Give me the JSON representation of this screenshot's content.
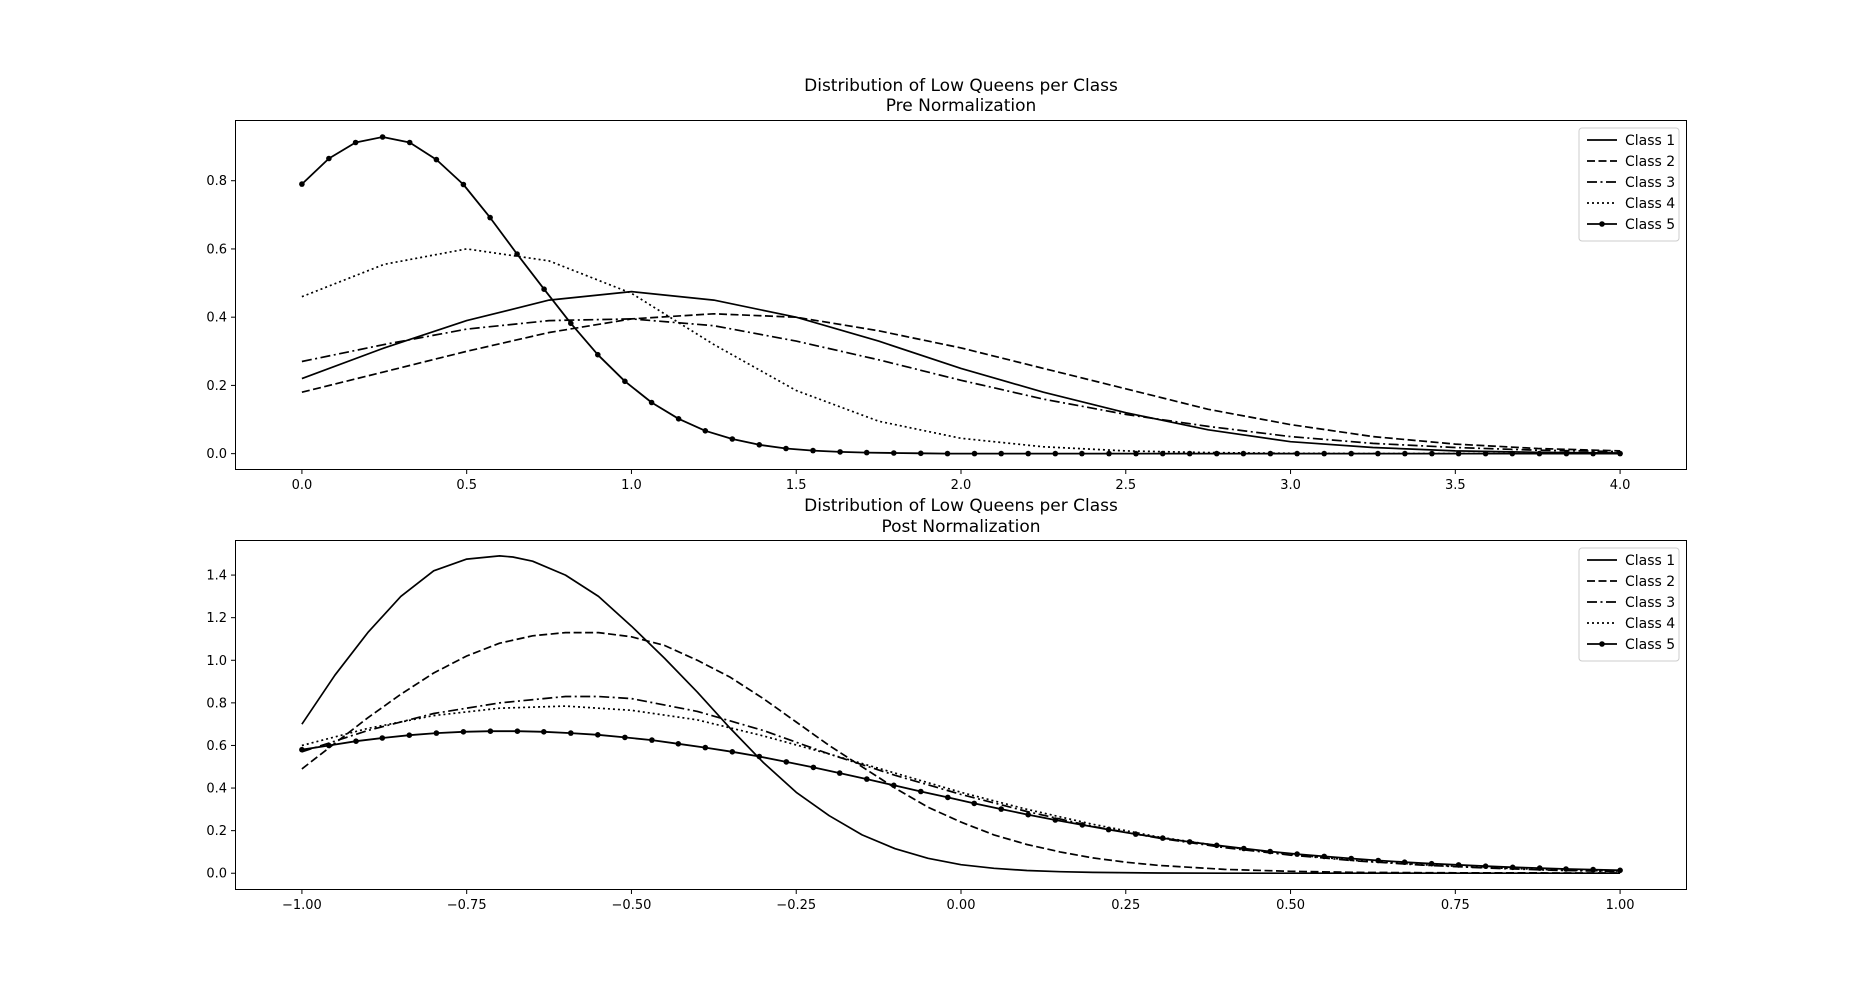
{
  "chart_data": [
    {
      "type": "line",
      "title": "Distribution of Low Queens per Class",
      "subtitle": "Pre Normalization",
      "xlabel": "",
      "ylabel": "",
      "xlim": [
        -0.2,
        4.2
      ],
      "ylim": [
        -0.045,
        0.975
      ],
      "xticks": [
        0.0,
        0.5,
        1.0,
        1.5,
        2.0,
        2.5,
        3.0,
        3.5,
        4.0
      ],
      "xtick_labels": [
        "0.0",
        "0.5",
        "1.0",
        "1.5",
        "2.0",
        "2.5",
        "3.0",
        "3.5",
        "4.0"
      ],
      "yticks": [
        0.0,
        0.2,
        0.4,
        0.6,
        0.8
      ],
      "ytick_labels": [
        "0.0",
        "0.2",
        "0.4",
        "0.6",
        "0.8"
      ],
      "grid": false,
      "legend_position": "top-right",
      "series": [
        {
          "name": "Class 1",
          "style": "solid",
          "marker": false,
          "x": [
            0.0,
            0.25,
            0.5,
            0.75,
            1.0,
            1.25,
            1.5,
            1.75,
            2.0,
            2.25,
            2.5,
            2.75,
            3.0,
            3.25,
            3.5,
            3.75,
            4.0
          ],
          "y": [
            0.22,
            0.31,
            0.39,
            0.45,
            0.475,
            0.45,
            0.4,
            0.33,
            0.25,
            0.18,
            0.12,
            0.07,
            0.035,
            0.018,
            0.008,
            0.004,
            0.002
          ]
        },
        {
          "name": "Class 2",
          "style": "dashed",
          "marker": false,
          "x": [
            0.0,
            0.25,
            0.5,
            0.75,
            1.0,
            1.25,
            1.5,
            1.75,
            2.0,
            2.25,
            2.5,
            2.75,
            3.0,
            3.25,
            3.5,
            3.75,
            4.0
          ],
          "y": [
            0.18,
            0.24,
            0.3,
            0.355,
            0.395,
            0.41,
            0.4,
            0.36,
            0.31,
            0.25,
            0.19,
            0.13,
            0.085,
            0.05,
            0.028,
            0.015,
            0.008
          ]
        },
        {
          "name": "Class 3",
          "style": "dashdot",
          "marker": false,
          "x": [
            0.0,
            0.25,
            0.5,
            0.75,
            1.0,
            1.25,
            1.5,
            1.75,
            2.0,
            2.25,
            2.5,
            2.75,
            3.0,
            3.25,
            3.5,
            3.75,
            4.0
          ],
          "y": [
            0.27,
            0.32,
            0.365,
            0.39,
            0.395,
            0.375,
            0.33,
            0.275,
            0.215,
            0.16,
            0.115,
            0.08,
            0.05,
            0.03,
            0.018,
            0.01,
            0.006
          ]
        },
        {
          "name": "Class 4",
          "style": "dotted",
          "marker": false,
          "x": [
            0.0,
            0.25,
            0.5,
            0.75,
            1.0,
            1.25,
            1.5,
            1.75,
            2.0,
            2.25,
            2.5,
            2.75,
            3.0,
            3.25,
            3.5,
            3.75,
            4.0
          ],
          "y": [
            0.46,
            0.555,
            0.6,
            0.565,
            0.47,
            0.32,
            0.185,
            0.095,
            0.045,
            0.02,
            0.008,
            0.003,
            0.001,
            0.0,
            0.0,
            0.0,
            0.0
          ]
        },
        {
          "name": "Class 5",
          "style": "solid",
          "marker": true,
          "x": [
            0.0,
            0.082,
            0.163,
            0.245,
            0.327,
            0.408,
            0.49,
            0.571,
            0.653,
            0.735,
            0.816,
            0.898,
            0.98,
            1.061,
            1.143,
            1.224,
            1.306,
            1.388,
            1.469,
            1.551,
            1.633,
            1.714,
            1.796,
            1.878,
            1.959,
            2.041,
            2.122,
            2.204,
            2.286,
            2.367,
            2.449,
            2.531,
            2.612,
            2.694,
            2.776,
            2.857,
            2.939,
            3.02,
            3.102,
            3.184,
            3.265,
            3.347,
            3.429,
            3.51,
            3.592,
            3.673,
            3.755,
            3.837,
            3.918,
            4.0
          ],
          "y": [
            0.79,
            0.865,
            0.912,
            0.928,
            0.912,
            0.862,
            0.789,
            0.692,
            0.585,
            0.482,
            0.382,
            0.29,
            0.212,
            0.15,
            0.102,
            0.067,
            0.043,
            0.026,
            0.015,
            0.009,
            0.005,
            0.003,
            0.002,
            0.001,
            0.0,
            0.0,
            0.0,
            0.0,
            0.0,
            0.0,
            0.0,
            0.0,
            0.0,
            0.0,
            0.0,
            0.0,
            0.0,
            0.0,
            0.0,
            0.0,
            0.0,
            0.0,
            0.0,
            0.0,
            0.0,
            0.0,
            0.0,
            0.0,
            0.0,
            0.0
          ]
        }
      ]
    },
    {
      "type": "line",
      "title": "Distribution of Low Queens per Class",
      "subtitle": "Post Normalization",
      "xlabel": "",
      "ylabel": "",
      "xlim": [
        -1.1,
        1.1
      ],
      "ylim": [
        -0.074,
        1.56
      ],
      "xticks": [
        -1.0,
        -0.75,
        -0.5,
        -0.25,
        0.0,
        0.25,
        0.5,
        0.75,
        1.0
      ],
      "xtick_labels": [
        "−1.00",
        "−0.75",
        "−0.50",
        "−0.25",
        "0.00",
        "0.25",
        "0.50",
        "0.75",
        "1.00"
      ],
      "yticks": [
        0.0,
        0.2,
        0.4,
        0.6,
        0.8,
        1.0,
        1.2,
        1.4
      ],
      "ytick_labels": [
        "0.0",
        "0.2",
        "0.4",
        "0.6",
        "0.8",
        "1.0",
        "1.2",
        "1.4"
      ],
      "grid": false,
      "legend_position": "top-right",
      "series": [
        {
          "name": "Class 1",
          "style": "solid",
          "marker": false,
          "x": [
            -1.0,
            -0.95,
            -0.9,
            -0.85,
            -0.8,
            -0.75,
            -0.7,
            -0.68,
            -0.65,
            -0.6,
            -0.55,
            -0.5,
            -0.45,
            -0.4,
            -0.35,
            -0.3,
            -0.25,
            -0.2,
            -0.15,
            -0.1,
            -0.05,
            0.0,
            0.05,
            0.1,
            0.15,
            0.2,
            0.3,
            0.4,
            0.5,
            0.6,
            0.75,
            1.0
          ],
          "y": [
            0.7,
            0.93,
            1.13,
            1.3,
            1.42,
            1.475,
            1.49,
            1.485,
            1.465,
            1.4,
            1.3,
            1.16,
            1.01,
            0.85,
            0.68,
            0.52,
            0.38,
            0.27,
            0.18,
            0.115,
            0.07,
            0.04,
            0.023,
            0.013,
            0.007,
            0.004,
            0.001,
            0.0,
            0.0,
            0.0,
            0.0,
            0.0
          ]
        },
        {
          "name": "Class 2",
          "style": "dashed",
          "marker": false,
          "x": [
            -1.0,
            -0.95,
            -0.9,
            -0.85,
            -0.8,
            -0.75,
            -0.7,
            -0.65,
            -0.6,
            -0.55,
            -0.5,
            -0.45,
            -0.4,
            -0.35,
            -0.3,
            -0.25,
            -0.2,
            -0.15,
            -0.1,
            -0.05,
            0.0,
            0.05,
            0.1,
            0.15,
            0.2,
            0.25,
            0.3,
            0.4,
            0.5,
            0.6,
            0.75,
            1.0
          ],
          "y": [
            0.49,
            0.61,
            0.73,
            0.84,
            0.94,
            1.02,
            1.08,
            1.115,
            1.13,
            1.13,
            1.11,
            1.07,
            1.0,
            0.92,
            0.82,
            0.71,
            0.6,
            0.5,
            0.4,
            0.31,
            0.24,
            0.18,
            0.135,
            0.1,
            0.072,
            0.052,
            0.037,
            0.018,
            0.009,
            0.004,
            0.002,
            0.001
          ]
        },
        {
          "name": "Class 3",
          "style": "dashdot",
          "marker": false,
          "x": [
            -1.0,
            -0.9,
            -0.8,
            -0.7,
            -0.6,
            -0.55,
            -0.5,
            -0.4,
            -0.3,
            -0.2,
            -0.1,
            0.0,
            0.1,
            0.2,
            0.3,
            0.4,
            0.5,
            0.6,
            0.7,
            0.8,
            0.9,
            1.0
          ],
          "y": [
            0.57,
            0.67,
            0.75,
            0.8,
            0.83,
            0.83,
            0.82,
            0.76,
            0.67,
            0.56,
            0.46,
            0.37,
            0.29,
            0.22,
            0.165,
            0.12,
            0.085,
            0.058,
            0.038,
            0.024,
            0.014,
            0.008
          ]
        },
        {
          "name": "Class 4",
          "style": "dotted",
          "marker": false,
          "x": [
            -1.0,
            -0.9,
            -0.8,
            -0.7,
            -0.6,
            -0.5,
            -0.4,
            -0.3,
            -0.2,
            -0.1,
            0.0,
            0.1,
            0.2,
            0.3,
            0.4,
            0.5,
            0.6,
            0.7,
            0.8,
            0.9,
            1.0
          ],
          "y": [
            0.6,
            0.68,
            0.74,
            0.775,
            0.785,
            0.765,
            0.72,
            0.645,
            0.56,
            0.47,
            0.38,
            0.3,
            0.23,
            0.17,
            0.125,
            0.088,
            0.06,
            0.04,
            0.026,
            0.016,
            0.01
          ]
        },
        {
          "name": "Class 5",
          "style": "solid",
          "marker": true,
          "x": [
            -1.0,
            -0.959,
            -0.918,
            -0.878,
            -0.837,
            -0.796,
            -0.755,
            -0.714,
            -0.673,
            -0.633,
            -0.592,
            -0.551,
            -0.51,
            -0.469,
            -0.429,
            -0.388,
            -0.347,
            -0.306,
            -0.265,
            -0.224,
            -0.184,
            -0.143,
            -0.102,
            -0.061,
            -0.02,
            0.02,
            0.061,
            0.102,
            0.143,
            0.184,
            0.224,
            0.265,
            0.306,
            0.347,
            0.388,
            0.429,
            0.469,
            0.51,
            0.551,
            0.592,
            0.633,
            0.673,
            0.714,
            0.755,
            0.796,
            0.837,
            0.878,
            0.918,
            0.959,
            1.0
          ],
          "y": [
            0.58,
            0.6,
            0.62,
            0.635,
            0.648,
            0.658,
            0.664,
            0.667,
            0.667,
            0.664,
            0.658,
            0.65,
            0.638,
            0.625,
            0.608,
            0.59,
            0.57,
            0.548,
            0.523,
            0.497,
            0.47,
            0.442,
            0.413,
            0.384,
            0.356,
            0.328,
            0.301,
            0.275,
            0.25,
            0.227,
            0.205,
            0.184,
            0.165,
            0.147,
            0.131,
            0.116,
            0.102,
            0.09,
            0.079,
            0.069,
            0.06,
            0.052,
            0.045,
            0.039,
            0.033,
            0.028,
            0.024,
            0.02,
            0.017,
            0.014
          ]
        }
      ]
    }
  ]
}
